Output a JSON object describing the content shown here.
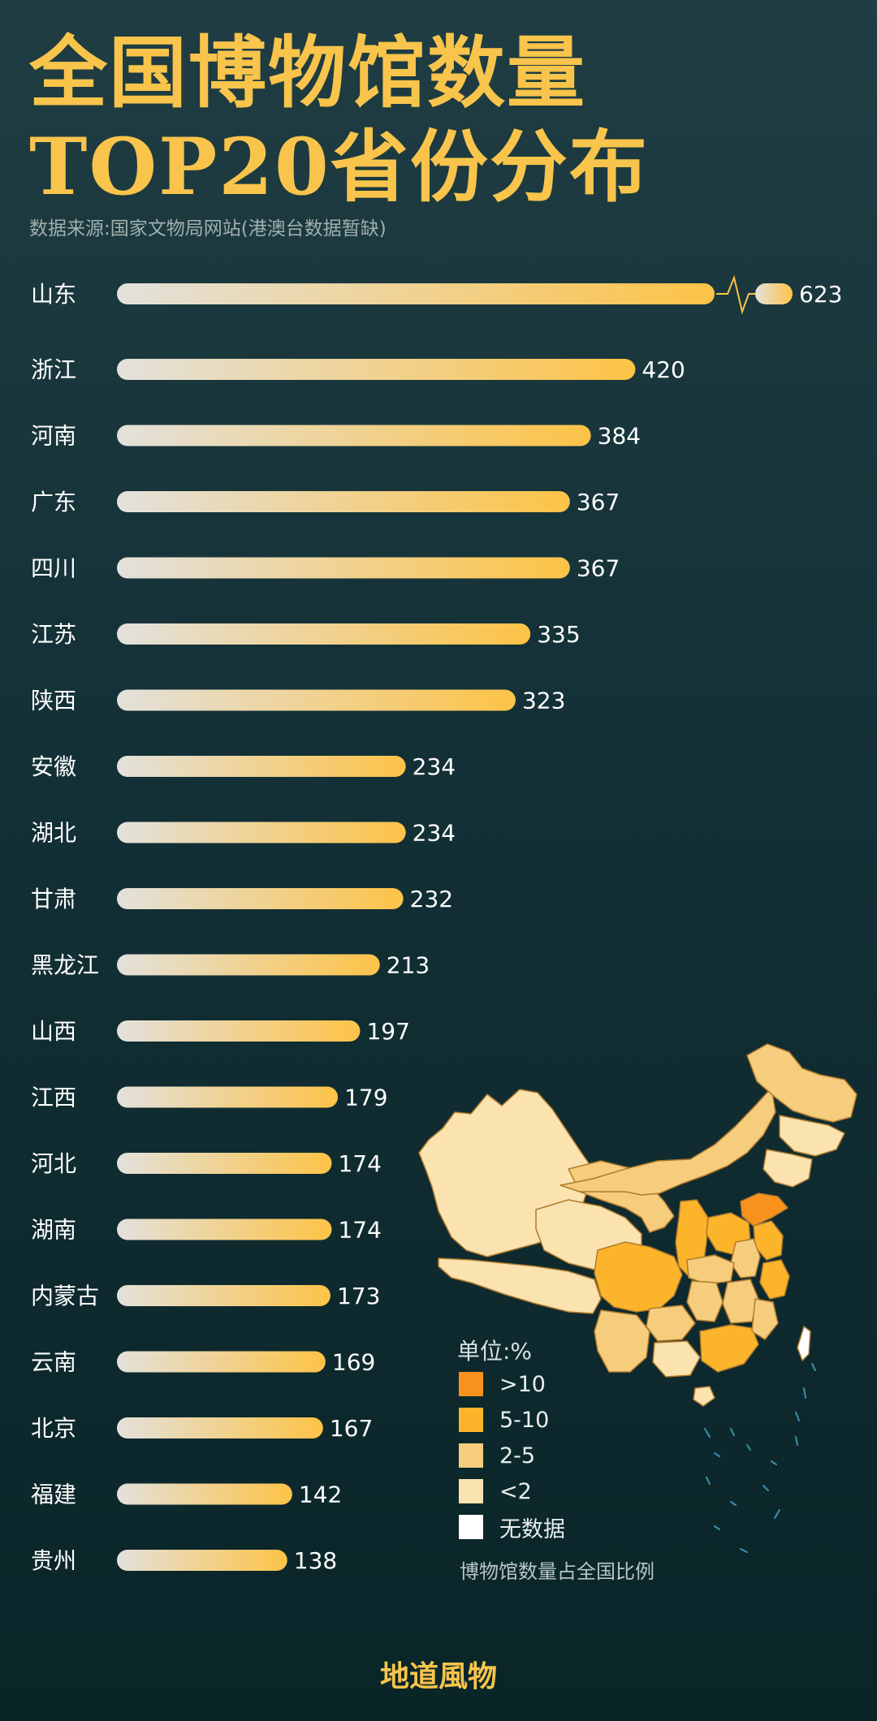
{
  "title": {
    "line1": "全国博物馆数量",
    "line2": "TOP20省份分布"
  },
  "source": "数据来源:国家文物局网站(港澳台数据暂缺)",
  "colors": {
    "bar_start": "#e3e1dc",
    "bar_end": "#fdc347",
    "legend_gt10": "#f9921c",
    "legend_5_10": "#fcb52a",
    "legend_2_5": "#f6cd7d",
    "legend_lt2": "#fbe3b0",
    "legend_nodata": "#ffffff"
  },
  "chart_data": {
    "type": "bar",
    "orientation": "horizontal",
    "categories": [
      "山东",
      "浙江",
      "河南",
      "广东",
      "四川",
      "江苏",
      "陕西",
      "安徽",
      "湖北",
      "甘肃",
      "黑龙江",
      "山西",
      "江西",
      "河北",
      "湖南",
      "内蒙古",
      "云南",
      "北京",
      "福建",
      "贵州"
    ],
    "values": [
      623,
      420,
      384,
      367,
      367,
      335,
      323,
      234,
      234,
      232,
      213,
      197,
      179,
      174,
      174,
      173,
      169,
      167,
      142,
      138
    ],
    "axis_break": {
      "category": "山东"
    }
  },
  "legend": {
    "title": "单位:%",
    "items": [
      {
        "label": ">10",
        "color": "#f9921c"
      },
      {
        "label": "5-10",
        "color": "#fcb52a"
      },
      {
        "label": "2-5",
        "color": "#f6cd7d"
      },
      {
        "label": "<2",
        "color": "#fbe3b0"
      },
      {
        "label": "无数据",
        "color": "#ffffff"
      }
    ],
    "caption": "博物馆数量占全国比例"
  },
  "map": {
    "regions": [
      {
        "name": "新疆",
        "class": "<2"
      },
      {
        "name": "西藏",
        "class": "<2"
      },
      {
        "name": "青海",
        "class": "<2"
      },
      {
        "name": "甘肃",
        "class": "2-5"
      },
      {
        "name": "内蒙古",
        "class": "2-5"
      },
      {
        "name": "黑龙江",
        "class": "2-5"
      },
      {
        "name": "吉林",
        "class": "<2"
      },
      {
        "name": "辽宁",
        "class": "<2"
      },
      {
        "name": "陕西",
        "class": "5-10"
      },
      {
        "name": "四川",
        "class": "5-10"
      },
      {
        "name": "河南",
        "class": "5-10"
      },
      {
        "name": "山东",
        "class": ">10"
      },
      {
        "name": "浙江",
        "class": "5-10"
      },
      {
        "name": "江苏",
        "class": "5-10"
      },
      {
        "name": "广东",
        "class": "5-10"
      },
      {
        "name": "湖北",
        "class": "2-5"
      },
      {
        "name": "湖南",
        "class": "2-5"
      },
      {
        "name": "江西",
        "class": "2-5"
      },
      {
        "name": "安徽",
        "class": "2-5"
      },
      {
        "name": "云南",
        "class": "2-5"
      },
      {
        "name": "贵州",
        "class": "2-5"
      },
      {
        "name": "广西",
        "class": "<2"
      },
      {
        "name": "福建",
        "class": "2-5"
      },
      {
        "name": "台湾",
        "class": "无数据"
      },
      {
        "name": "海南",
        "class": "<2"
      }
    ]
  },
  "brand": "地道風物"
}
